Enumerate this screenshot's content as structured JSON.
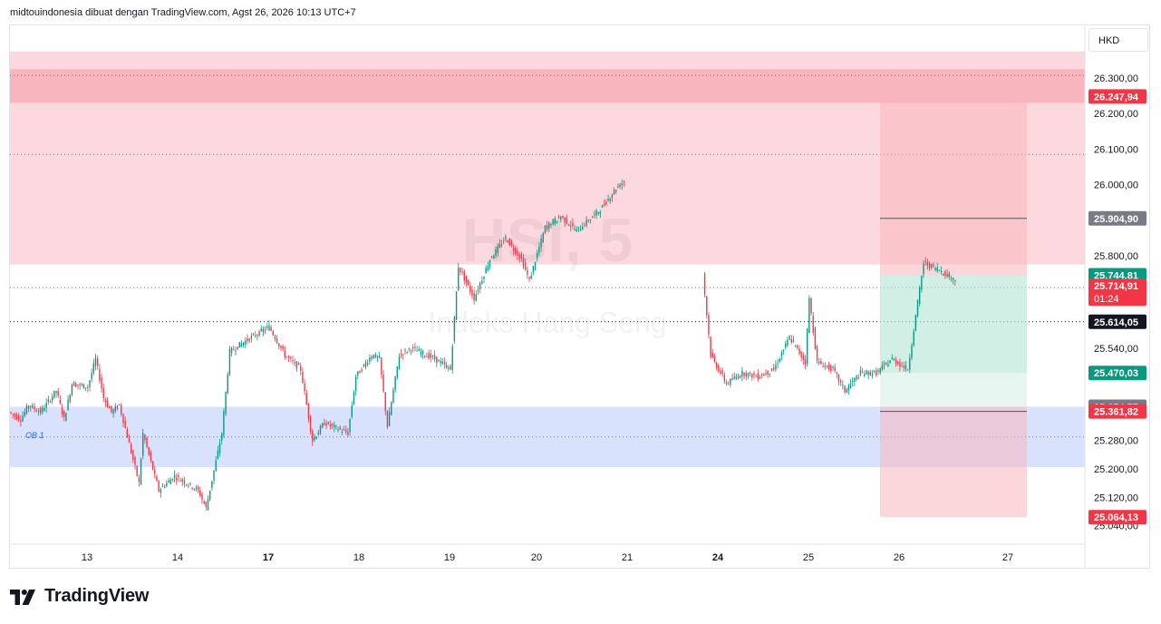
{
  "header": {
    "caption": "midtouindonesia dibuat dengan TradingView.com, Agst 26, 2026 10:13 UTC+7"
  },
  "footer": {
    "brand": "TradingView",
    "logo_icon": "tradingview-logo-icon"
  },
  "price_scale": {
    "currency": "HKD",
    "ticks": [
      "26.300,00",
      "26.200,00",
      "26.100,00",
      "26.000,00",
      "25.800,00",
      "25.540,00",
      "25.280,00",
      "25.200,00",
      "25.120,00",
      "25.040,00"
    ]
  },
  "time_axis": {
    "labels": [
      {
        "text": "13",
        "bold": false
      },
      {
        "text": "14",
        "bold": false
      },
      {
        "text": "17",
        "bold": true
      },
      {
        "text": "18",
        "bold": false
      },
      {
        "text": "19",
        "bold": false
      },
      {
        "text": "20",
        "bold": false
      },
      {
        "text": "21",
        "bold": false
      },
      {
        "text": "24",
        "bold": true
      },
      {
        "text": "25",
        "bold": false
      },
      {
        "text": "26",
        "bold": false
      },
      {
        "text": "27",
        "bold": false
      }
    ]
  },
  "watermark": {
    "symbol": "HSI, 5",
    "name": "Indeks Hang Seng"
  },
  "zones": [
    {
      "name": "supply-zone-outer",
      "from": 25775,
      "to": 26375,
      "color": "#fcd9de"
    },
    {
      "name": "supply-zone-inner",
      "from": 26230,
      "to": 26325,
      "color": "#f9b5bd"
    },
    {
      "name": "demand-zone",
      "from": 25205,
      "to": 25375,
      "color": "#d9e2fd",
      "label": "OB 1"
    }
  ],
  "levels": [
    {
      "value": 26307,
      "style": "dotted",
      "color": "#f23645"
    },
    {
      "value": 26085,
      "style": "dotted",
      "color": "#f23645"
    },
    {
      "value": 25710,
      "style": "dotted",
      "color": "#f23645"
    },
    {
      "value": 25614.05,
      "style": "dotted",
      "color": "#131722"
    },
    {
      "value": 25290,
      "style": "dotted",
      "color": "#787b86"
    }
  ],
  "position_tool": {
    "stop_loss_top": 26247.94,
    "entry": 25744.81,
    "entry_line": 25904.9,
    "take_profit": 25470.03,
    "lower_line": 25361.82,
    "bottom": 25064.13,
    "colors": {
      "risk": "#f7b6bd",
      "reward": "#b9e6d6"
    }
  },
  "badges": [
    {
      "text": "26.247,94",
      "value": 26247.94,
      "bg": "#f23645",
      "fg": "#ffffff"
    },
    {
      "text": "25.904,90",
      "value": 25904.9,
      "bg": "#787b86",
      "fg": "#ffffff"
    },
    {
      "text": "25.744,81",
      "value": 25744.81,
      "bg": "#089981",
      "fg": "#ffffff"
    },
    {
      "text": "25.714,91",
      "sub": "01:24",
      "value": 25714.91,
      "bg": "#f23645",
      "fg": "#ffffff"
    },
    {
      "text": "25.614,05",
      "value": 25614.05,
      "bg": "#131722",
      "fg": "#ffffff"
    },
    {
      "text": "25.470,03",
      "value": 25470.03,
      "bg": "#089981",
      "fg": "#ffffff"
    },
    {
      "text": "25.374,77",
      "value": 25374.77,
      "bg": "#787b86",
      "fg": "#ffffff"
    },
    {
      "text": "25.361,82",
      "value": 25361.82,
      "bg": "#f23645",
      "fg": "#ffffff"
    },
    {
      "text": "25.064,13",
      "value": 25064.13,
      "bg": "#f23645",
      "fg": "#ffffff"
    }
  ],
  "colors": {
    "up": "#089981",
    "down": "#f23645"
  },
  "chart_data": {
    "type": "candlestick",
    "title": "",
    "x_unit": "trading day (August 2026)",
    "ylim": [
      25000,
      26400
    ],
    "path": [
      [
        0,
        25360
      ],
      [
        3,
        25340
      ],
      [
        5,
        25380
      ],
      [
        8,
        25360
      ],
      [
        12,
        25420
      ],
      [
        14,
        25340
      ],
      [
        16,
        25440
      ],
      [
        20,
        25430
      ],
      [
        22,
        25510
      ],
      [
        24,
        25400
      ],
      [
        26,
        25360
      ],
      [
        28,
        25380
      ],
      [
        33,
        25160
      ],
      [
        34,
        25300
      ],
      [
        38,
        25140
      ],
      [
        42,
        25180
      ],
      [
        48,
        25140
      ],
      [
        50,
        25090
      ],
      [
        54,
        25300
      ],
      [
        56,
        25530
      ],
      [
        60,
        25560
      ],
      [
        66,
        25600
      ],
      [
        70,
        25520
      ],
      [
        74,
        25480
      ],
      [
        77,
        25280
      ],
      [
        80,
        25330
      ],
      [
        86,
        25300
      ],
      [
        88,
        25460
      ],
      [
        92,
        25520
      ],
      [
        94,
        25510
      ],
      [
        96,
        25320
      ],
      [
        99,
        25520
      ],
      [
        102,
        25540
      ],
      [
        108,
        25510
      ],
      [
        112,
        25480
      ],
      [
        114,
        25770
      ],
      [
        118,
        25680
      ],
      [
        122,
        25790
      ],
      [
        126,
        25850
      ],
      [
        130,
        25790
      ],
      [
        132,
        25730
      ],
      [
        136,
        25880
      ],
      [
        140,
        25910
      ],
      [
        144,
        25870
      ],
      [
        150,
        25930
      ],
      [
        154,
        25990
      ],
      [
        156,
        26010
      ],
      [
        176,
        25750
      ],
      [
        178,
        25520
      ],
      [
        182,
        25440
      ],
      [
        186,
        25470
      ],
      [
        190,
        25460
      ],
      [
        194,
        25480
      ],
      [
        198,
        25570
      ],
      [
        202,
        25500
      ],
      [
        203,
        25680
      ],
      [
        205,
        25500
      ],
      [
        209,
        25480
      ],
      [
        212,
        25420
      ],
      [
        216,
        25470
      ],
      [
        220,
        25470
      ],
      [
        224,
        25510
      ],
      [
        228,
        25480
      ],
      [
        230,
        25630
      ],
      [
        232,
        25780
      ],
      [
        236,
        25760
      ],
      [
        240,
        25730
      ]
    ]
  }
}
